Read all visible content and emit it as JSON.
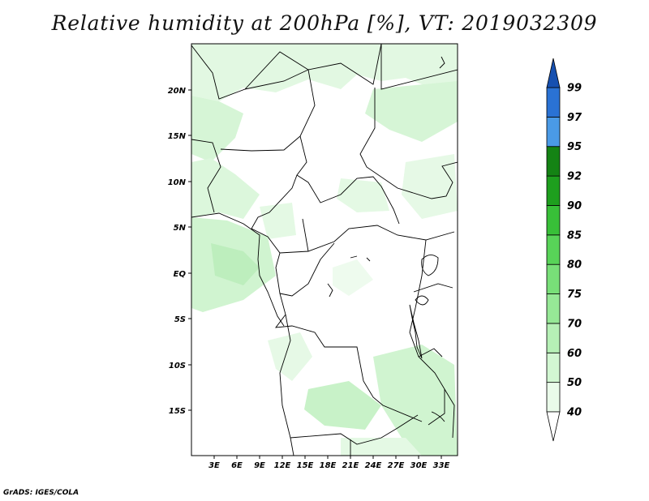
{
  "title": "Relative humidity at 200hPa [%], VT: 2019032309",
  "credit": "GrADS: IGES/COLA",
  "map": {
    "lon_range": [
      0,
      34
    ],
    "lat_range": [
      -20,
      25
    ],
    "lon_ticks": [
      "3E",
      "6E",
      "9E",
      "12E",
      "15E",
      "18E",
      "21E",
      "24E",
      "27E",
      "30E",
      "33E"
    ],
    "lat_ticks": [
      "20N",
      "15N",
      "10N",
      "5N",
      "EQ",
      "5S",
      "10S",
      "15S"
    ]
  },
  "colorbar": {
    "levels": [
      "40",
      "50",
      "60",
      "70",
      "75",
      "80",
      "85",
      "90",
      "92",
      "95",
      "97",
      "99"
    ],
    "colors": [
      "#ffffff",
      "#eafbea",
      "#d2f7d2",
      "#b6f0b6",
      "#96e896",
      "#78df78",
      "#58d358",
      "#38bf38",
      "#1e9f1e",
      "#148314",
      "#4a9ae6",
      "#2a72d4",
      "#1650b0"
    ]
  }
}
